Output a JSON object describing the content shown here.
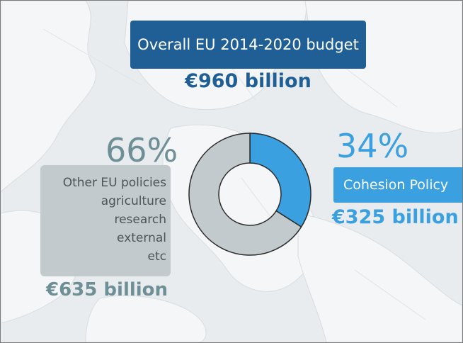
{
  "title": "Overall EU 2014-2020 budget",
  "total": "€960 billion",
  "other": {
    "percent": "66%",
    "lines": [
      "Other EU policies",
      "agriculture",
      "research",
      "external",
      "etc"
    ],
    "amount": "€635 billion"
  },
  "cohesion": {
    "percent": "34%",
    "label": "Cohesion Policy",
    "amount": "€325 billion"
  },
  "colors": {
    "title_bg": "#1f5f96",
    "cohesion": "#3aa0e0",
    "other": "#c3cacd",
    "other_text": "#6f8f96"
  },
  "chart_data": {
    "type": "pie",
    "donut": true,
    "title": "Overall EU 2014-2020 budget",
    "total_billion_eur": 960,
    "slices": [
      {
        "label": "Cohesion Policy",
        "value": 34,
        "amount_billion_eur": 325,
        "color": "#3aa0e0"
      },
      {
        "label": "Other EU policies",
        "value": 66,
        "amount_billion_eur": 635,
        "color": "#c3cacd"
      }
    ]
  }
}
